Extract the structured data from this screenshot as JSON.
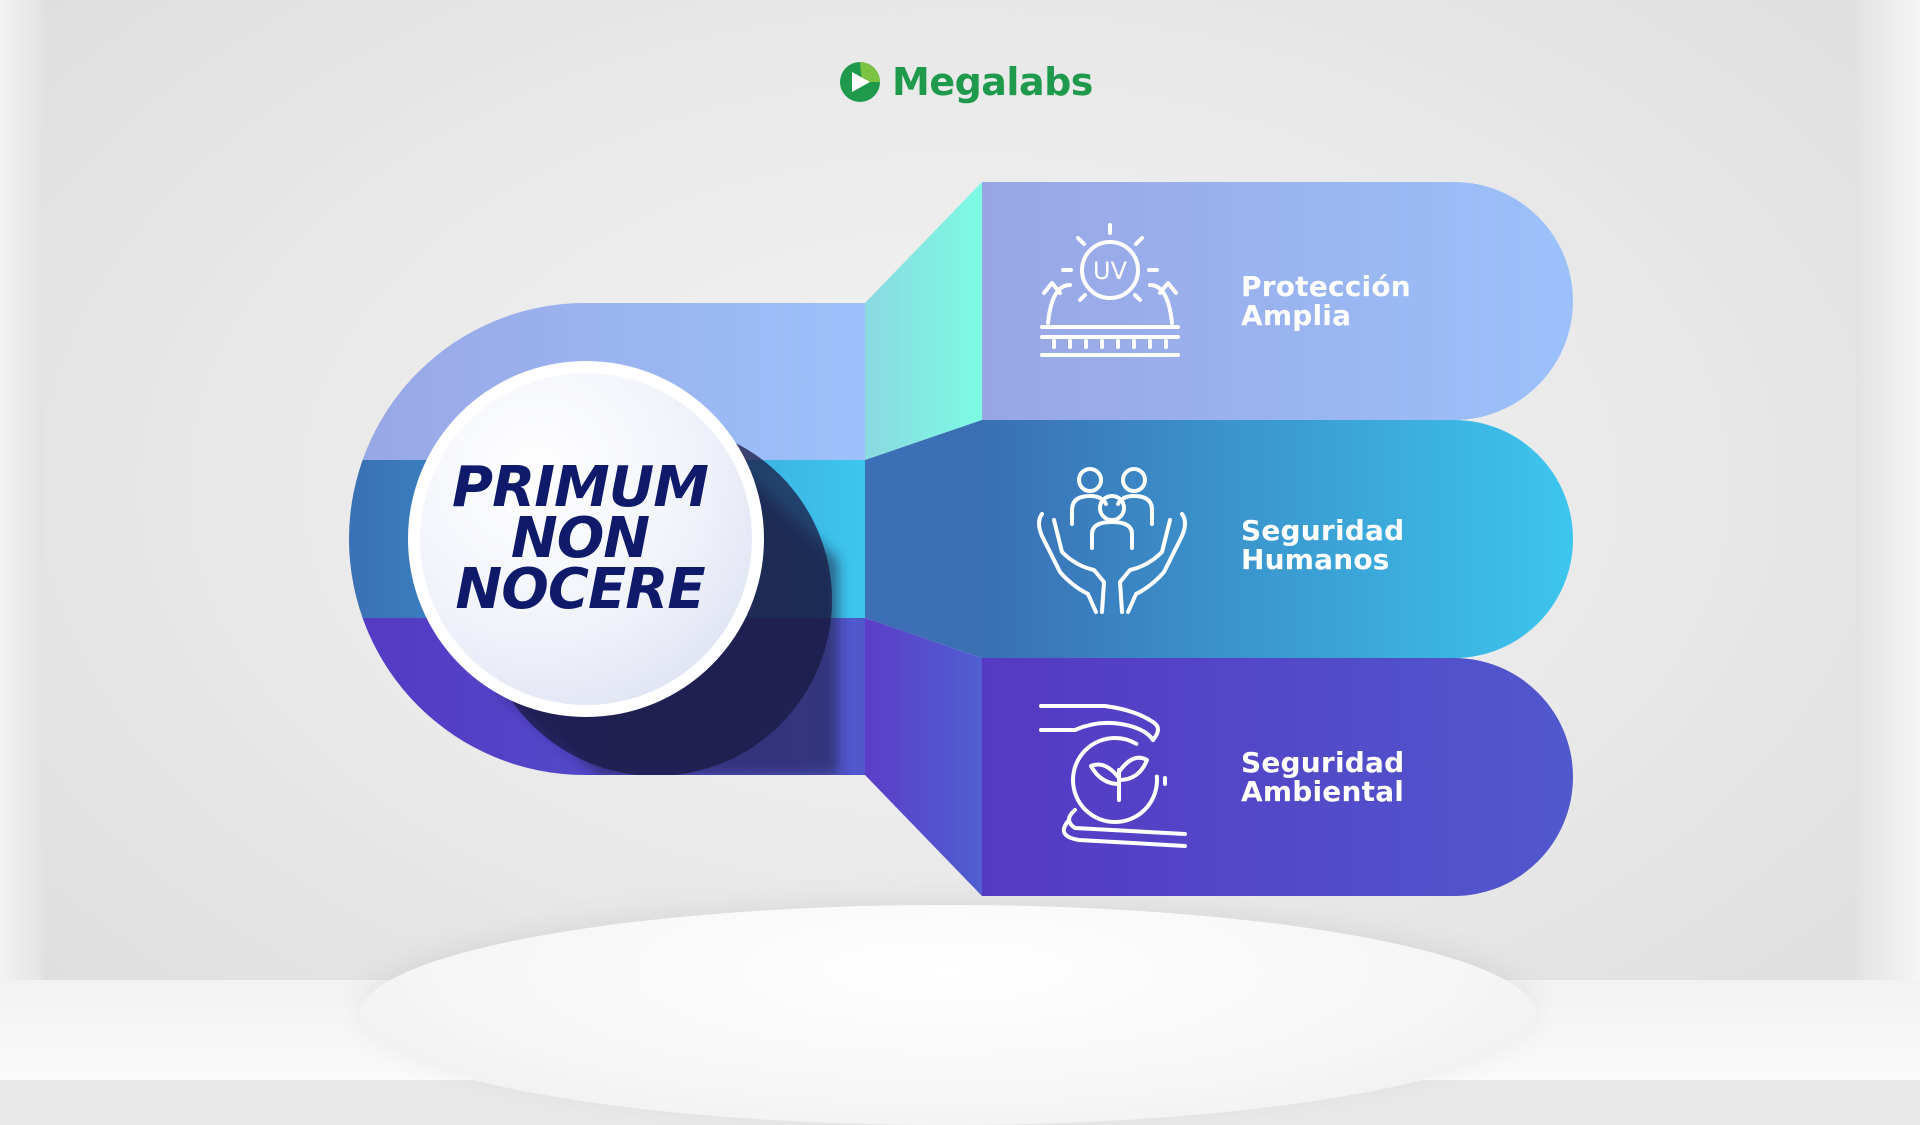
{
  "brand": {
    "name": "Megalabs",
    "color": "#1f9a4d"
  },
  "center": {
    "lines": [
      "PRIMUM",
      "NON",
      "NOCERE"
    ],
    "text_color": "#0f1a6b"
  },
  "items": [
    {
      "label_lines": [
        "Protección",
        "Amplia"
      ],
      "icon": "uv-protection-icon",
      "color_start": "#98a6e4",
      "color_end": "#9cc1fa"
    },
    {
      "label_lines": [
        "Seguridad",
        "Humanos"
      ],
      "icon": "hands-people-icon",
      "color_start": "#3a6fb4",
      "color_end": "#3cc6ee"
    },
    {
      "label_lines": [
        "Seguridad",
        "Ambiental"
      ],
      "icon": "hand-plant-globe-icon",
      "color_start": "#5539c4",
      "color_end": "#5158cc"
    }
  ],
  "icons": {
    "uv_text": "UV"
  }
}
